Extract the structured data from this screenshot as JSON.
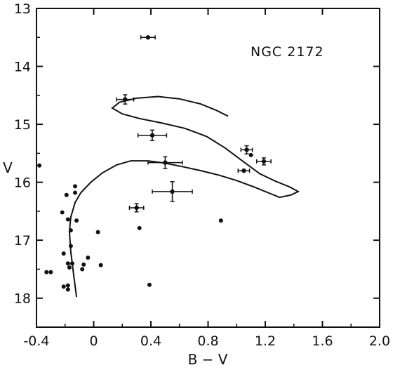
{
  "chart_data": {
    "type": "scatter",
    "title": "",
    "annotation": "NGC 2172",
    "xlabel": "B − V",
    "ylabel": "V",
    "xlim": [
      -0.4,
      2.0
    ],
    "ylim": [
      18.5,
      13.0
    ],
    "y_inverted": true,
    "grid": false,
    "x_ticks": [
      -0.4,
      0.0,
      0.4,
      0.8,
      1.2,
      1.6,
      2.0
    ],
    "x_tick_labels": [
      "-0.4",
      "0",
      "0.4",
      "0.8",
      "1.2",
      "1.6",
      "2.0"
    ],
    "y_ticks": [
      13,
      14,
      15,
      16,
      17,
      18
    ],
    "y_tick_labels": [
      "13",
      "14",
      "15",
      "16",
      "17",
      "18"
    ],
    "points_with_errors": [
      {
        "x": 0.38,
        "y": 13.5,
        "xerr": 0.05,
        "yerr": 0.0
      },
      {
        "x": 0.22,
        "y": 14.57,
        "xerr": 0.06,
        "yerr": 0.08
      },
      {
        "x": 0.41,
        "y": 15.19,
        "xerr": 0.1,
        "yerr": 0.09
      },
      {
        "x": 0.5,
        "y": 15.66,
        "xerr": 0.12,
        "yerr": 0.1
      },
      {
        "x": 0.55,
        "y": 16.16,
        "xerr": 0.14,
        "yerr": 0.17
      },
      {
        "x": 0.3,
        "y": 16.44,
        "xerr": 0.05,
        "yerr": 0.07
      },
      {
        "x": 1.07,
        "y": 15.44,
        "xerr": 0.04,
        "yerr": 0.07
      },
      {
        "x": 1.05,
        "y": 15.8,
        "xerr": 0.04,
        "yerr": 0.0
      },
      {
        "x": 1.19,
        "y": 15.64,
        "xerr": 0.05,
        "yerr": 0.06
      }
    ],
    "points": [
      {
        "x": -0.38,
        "y": 15.71
      },
      {
        "x": -0.13,
        "y": 16.07
      },
      {
        "x": -0.13,
        "y": 16.18
      },
      {
        "x": -0.19,
        "y": 16.22
      },
      {
        "x": -0.22,
        "y": 16.52
      },
      {
        "x": -0.18,
        "y": 16.64
      },
      {
        "x": -0.12,
        "y": 16.66
      },
      {
        "x": -0.16,
        "y": 16.83
      },
      {
        "x": 0.03,
        "y": 16.86
      },
      {
        "x": -0.21,
        "y": 17.23
      },
      {
        "x": -0.16,
        "y": 17.1
      },
      {
        "x": 0.32,
        "y": 16.79
      },
      {
        "x": -0.04,
        "y": 17.3
      },
      {
        "x": -0.18,
        "y": 17.4
      },
      {
        "x": -0.15,
        "y": 17.4
      },
      {
        "x": -0.07,
        "y": 17.42
      },
      {
        "x": 0.05,
        "y": 17.43
      },
      {
        "x": -0.17,
        "y": 17.47
      },
      {
        "x": -0.33,
        "y": 17.55
      },
      {
        "x": -0.3,
        "y": 17.55
      },
      {
        "x": -0.08,
        "y": 17.5
      },
      {
        "x": -0.21,
        "y": 17.8
      },
      {
        "x": -0.18,
        "y": 17.78
      },
      {
        "x": -0.18,
        "y": 17.85
      },
      {
        "x": 0.39,
        "y": 17.77
      },
      {
        "x": 0.89,
        "y": 16.66
      },
      {
        "x": 1.1,
        "y": 15.53
      }
    ],
    "isochrone": [
      [
        -0.12,
        17.98
      ],
      [
        -0.14,
        17.6
      ],
      [
        -0.16,
        17.2
      ],
      [
        -0.17,
        16.85
      ],
      [
        -0.16,
        16.6
      ],
      [
        -0.13,
        16.35
      ],
      [
        -0.09,
        16.18
      ],
      [
        -0.02,
        16.0
      ],
      [
        0.06,
        15.84
      ],
      [
        0.16,
        15.7
      ],
      [
        0.26,
        15.63
      ],
      [
        0.38,
        15.63
      ],
      [
        0.5,
        15.67
      ],
      [
        0.62,
        15.73
      ],
      [
        0.75,
        15.8
      ],
      [
        0.88,
        15.88
      ],
      [
        1.0,
        15.97
      ],
      [
        1.12,
        16.08
      ],
      [
        1.22,
        16.18
      ],
      [
        1.3,
        16.26
      ],
      [
        1.38,
        16.22
      ],
      [
        1.43,
        16.16
      ],
      [
        1.37,
        16.08
      ],
      [
        1.27,
        15.98
      ],
      [
        1.16,
        15.85
      ],
      [
        1.05,
        15.65
      ],
      [
        0.92,
        15.41
      ],
      [
        0.79,
        15.21
      ],
      [
        0.64,
        15.07
      ],
      [
        0.48,
        14.98
      ],
      [
        0.32,
        14.9
      ],
      [
        0.2,
        14.82
      ],
      [
        0.13,
        14.72
      ],
      [
        0.18,
        14.62
      ],
      [
        0.3,
        14.55
      ],
      [
        0.45,
        14.52
      ],
      [
        0.6,
        14.56
      ],
      [
        0.75,
        14.65
      ],
      [
        0.86,
        14.76
      ],
      [
        0.94,
        14.86
      ]
    ]
  }
}
